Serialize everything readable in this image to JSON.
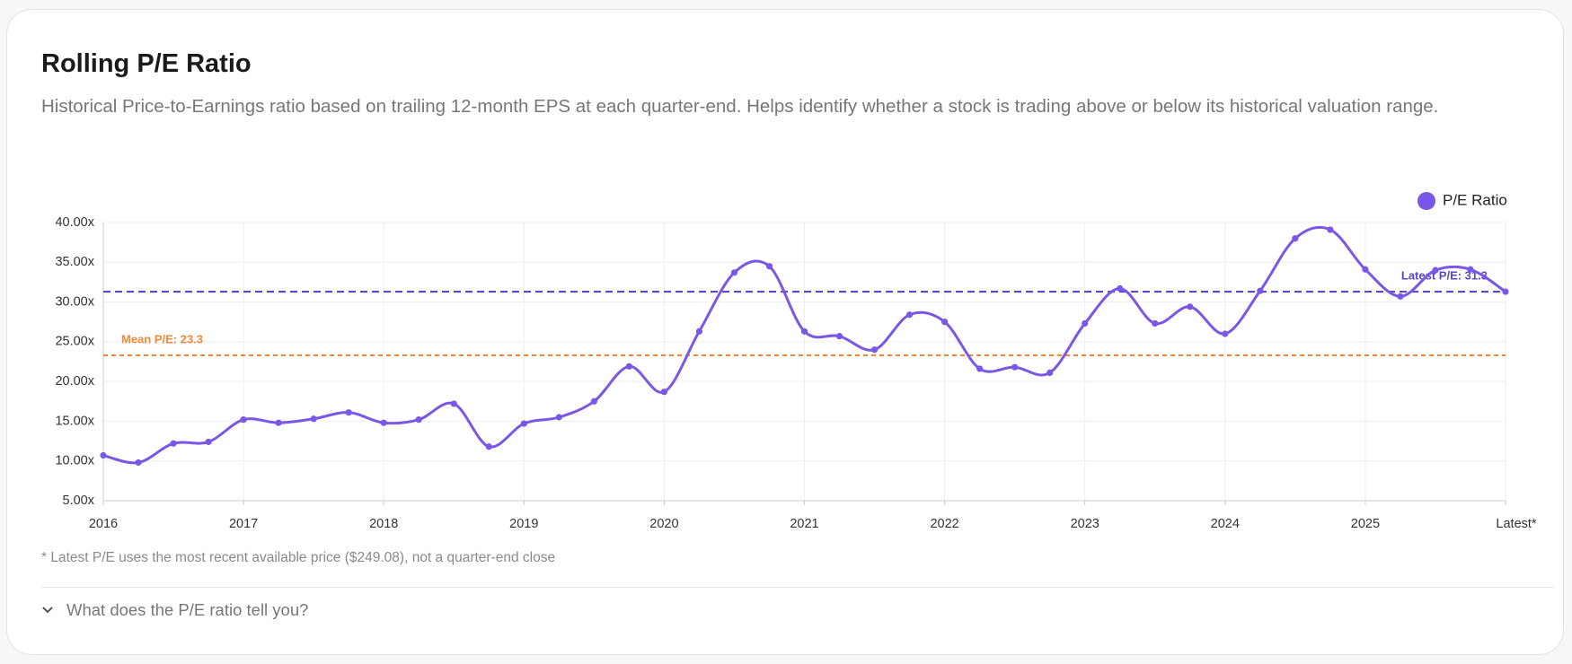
{
  "chart_data": {
    "type": "line",
    "title": "Rolling P/E Ratio",
    "subtitle": "Historical Price-to-Earnings ratio based on trailing 12-month EPS at each quarter-end. Helps identify whether a stock is trading above or below its historical valuation range.",
    "categories": [
      "2016",
      null,
      null,
      null,
      "2017",
      null,
      null,
      null,
      "2018",
      null,
      null,
      null,
      "2019",
      null,
      null,
      null,
      "2020",
      null,
      null,
      null,
      "2021",
      null,
      null,
      null,
      "2022",
      null,
      null,
      null,
      "2023",
      null,
      null,
      null,
      "2024",
      null,
      null,
      null,
      "2025",
      null,
      null,
      null,
      "Latest*"
    ],
    "series": [
      {
        "name": "P/E Ratio",
        "color": "#7b57e6",
        "values": [
          10.7,
          9.8,
          12.2,
          12.4,
          15.2,
          14.8,
          15.3,
          16.1,
          14.8,
          15.2,
          17.2,
          11.8,
          14.7,
          15.5,
          17.5,
          21.9,
          18.7,
          26.3,
          33.7,
          34.5,
          26.3,
          25.7,
          24.0,
          28.4,
          27.5,
          21.6,
          21.8,
          21.1,
          27.3,
          31.7,
          27.3,
          29.4,
          26.0,
          31.4,
          38.0,
          39.1,
          34.1,
          30.7,
          34.0,
          34.1,
          31.3
        ]
      }
    ],
    "ylim": [
      5,
      40
    ],
    "yticks": [
      {
        "value": 5,
        "label": "5.00x"
      },
      {
        "value": 10,
        "label": "10.00x"
      },
      {
        "value": 15,
        "label": "15.00x"
      },
      {
        "value": 20,
        "label": "20.00x"
      },
      {
        "value": 25,
        "label": "25.00x"
      },
      {
        "value": 30,
        "label": "30.00x"
      },
      {
        "value": 35,
        "label": "35.00x"
      },
      {
        "value": 40,
        "label": "40.00x"
      }
    ],
    "grid": true,
    "legend": "top-right",
    "reference_lines": [
      {
        "label": "Mean P/E: 23.3",
        "value": 23.3,
        "color": "#f0893a"
      },
      {
        "label": "Latest P/E: 31.3",
        "value": 31.3,
        "color": "#5b48c8"
      }
    ],
    "footnote": "* Latest P/E uses the most recent available price ($249.08), not a quarter-end close",
    "expander": "What does the P/E ratio tell you?"
  }
}
